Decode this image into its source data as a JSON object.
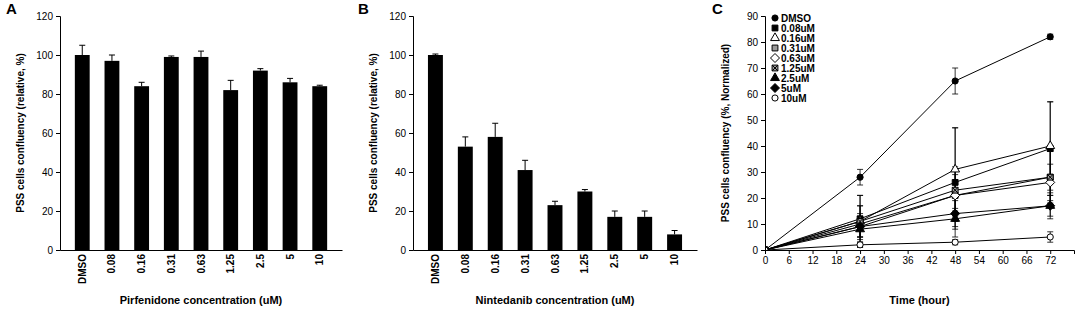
{
  "chart_data": [
    {
      "type": "bar",
      "title": "A",
      "x_label": "Pirfenidone concentration (uM)",
      "y_label": "PSS cells confluency (relative, %)",
      "categories": [
        "DMSO",
        "0.08",
        "0.16",
        "0.31",
        "0.63",
        "1.25",
        "2.5",
        "5",
        "10"
      ],
      "values": [
        100,
        97,
        84,
        99,
        99,
        82,
        92,
        86,
        84
      ],
      "errors": [
        5,
        3,
        2,
        0.5,
        3,
        5,
        1,
        2,
        0.5
      ],
      "color": "#000000",
      "ylim": [
        0,
        120
      ],
      "yticks": [
        0,
        20,
        40,
        60,
        80,
        100,
        120
      ]
    },
    {
      "type": "bar",
      "title": "B",
      "x_label": "Nintedanib concentration (uM)",
      "y_label": "PSS cells confluency (relative, %)",
      "categories": [
        "DMSO",
        "0.08",
        "0.16",
        "0.31",
        "0.63",
        "1.25",
        "2.5",
        "5",
        "10"
      ],
      "values": [
        100,
        53,
        58,
        41,
        23,
        30,
        17,
        17,
        8
      ],
      "errors": [
        0.5,
        5,
        7,
        5,
        2,
        1,
        3,
        3,
        2
      ],
      "color": "#000000",
      "ylim": [
        0,
        120
      ],
      "yticks": [
        0,
        20,
        40,
        60,
        80,
        100,
        120
      ]
    },
    {
      "type": "line",
      "title": "C",
      "x_label": "Time (hour)",
      "y_label": "PSS cells confluency (%, Normalized)",
      "x": [
        0,
        24,
        48,
        72
      ],
      "xlim": [
        0,
        78
      ],
      "xticks": [
        0,
        6,
        12,
        18,
        24,
        30,
        36,
        42,
        48,
        54,
        60,
        66,
        72
      ],
      "ylim": [
        0,
        90
      ],
      "yticks": [
        0,
        10,
        20,
        30,
        40,
        50,
        60,
        70,
        80,
        90
      ],
      "legend": "upper-left",
      "series": [
        {
          "name": "DMSO",
          "color": "#000000",
          "marker": "circle",
          "values": [
            0,
            28,
            65,
            82
          ],
          "errors": [
            0,
            3,
            5,
            1
          ]
        },
        {
          "name": "0.08uM",
          "color": "#000000",
          "marker": "square",
          "values": [
            0,
            12,
            26,
            39
          ],
          "errors": [
            0,
            9,
            21,
            18
          ]
        },
        {
          "name": "0.16uM",
          "color": "#000000",
          "marker": "triangle-open",
          "values": [
            0,
            11,
            31,
            40
          ],
          "errors": [
            0,
            10,
            16,
            17
          ]
        },
        {
          "name": "0.31uM",
          "color": "#000000",
          "marker": "square-hatched",
          "values": [
            0,
            10,
            21,
            28
          ],
          "errors": [
            0,
            7,
            10,
            10
          ]
        },
        {
          "name": "0.63uM",
          "color": "#000000",
          "marker": "diamond-open",
          "values": [
            0,
            9,
            21,
            26
          ],
          "errors": [
            0,
            5,
            8,
            7
          ]
        },
        {
          "name": "1.25uM",
          "color": "#000000",
          "marker": "square-cross",
          "values": [
            0,
            11,
            23,
            28
          ],
          "errors": [
            0,
            6,
            9,
            10
          ]
        },
        {
          "name": "2.5uM",
          "color": "#000000",
          "marker": "triangle",
          "values": [
            0,
            8,
            12,
            17
          ],
          "errors": [
            0,
            3,
            4,
            5
          ]
        },
        {
          "name": "5uM",
          "color": "#000000",
          "marker": "diamond",
          "values": [
            0,
            9,
            14,
            17
          ],
          "errors": [
            0,
            4,
            5,
            4
          ]
        },
        {
          "name": "10uM",
          "color": "#000000",
          "marker": "circle-open",
          "values": [
            0,
            2,
            3,
            5
          ],
          "errors": [
            0,
            1,
            1,
            2
          ]
        }
      ]
    }
  ]
}
